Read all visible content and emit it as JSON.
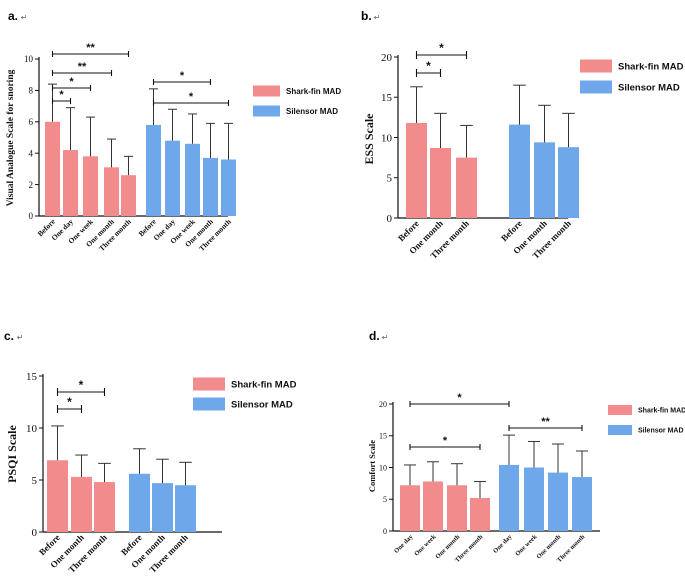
{
  "colors": {
    "shark": "#f28b8b",
    "silensor": "#6fa8ea",
    "axis": "#111111",
    "err": "#333333"
  },
  "series_names": [
    "Shark-fin MAD",
    "Silensor MAD"
  ],
  "edit_mark": "↵",
  "chart_data": [
    {
      "id": "a",
      "letter": "a.",
      "type": "bar",
      "ylabel": "Visual Analogue Scale for snoring",
      "ylim": [
        0,
        10
      ],
      "yticks": [
        0,
        2,
        4,
        6,
        8,
        10
      ],
      "series": [
        {
          "name": "Shark-fin MAD",
          "categories": [
            "Before",
            "One day",
            "One week",
            "One month",
            "Three month"
          ],
          "values": [
            6.0,
            4.2,
            3.8,
            3.1,
            2.6
          ],
          "errors": [
            2.4,
            2.7,
            2.5,
            1.8,
            1.2
          ]
        },
        {
          "name": "Silensor MAD",
          "categories": [
            "Before",
            "One day",
            "One week",
            "One month",
            "Three month"
          ],
          "values": [
            5.8,
            4.8,
            4.6,
            3.7,
            3.6
          ],
          "errors": [
            2.3,
            2.0,
            1.9,
            2.2,
            2.3
          ]
        }
      ],
      "significance": [
        {
          "from": [
            0,
            0
          ],
          "to": [
            0,
            1
          ],
          "label": "*"
        },
        {
          "from": [
            0,
            0
          ],
          "to": [
            0,
            2
          ],
          "label": "*"
        },
        {
          "from": [
            0,
            0
          ],
          "to": [
            0,
            3
          ],
          "label": "**"
        },
        {
          "from": [
            0,
            0
          ],
          "to": [
            0,
            4
          ],
          "label": "**"
        },
        {
          "from": [
            1,
            0
          ],
          "to": [
            1,
            3
          ],
          "label": "*"
        },
        {
          "from": [
            1,
            0
          ],
          "to": [
            1,
            4
          ],
          "label": "*"
        }
      ]
    },
    {
      "id": "b",
      "letter": "b.",
      "type": "bar",
      "ylabel": "ESS Scale",
      "ylim": [
        0,
        20
      ],
      "yticks": [
        0,
        5,
        10,
        15,
        20
      ],
      "series": [
        {
          "name": "Shark-fin MAD",
          "categories": [
            "Before",
            "One month",
            "Three month"
          ],
          "values": [
            11.8,
            8.7,
            7.5
          ],
          "errors": [
            4.5,
            4.3,
            4.0
          ]
        },
        {
          "name": "Silensor MAD",
          "categories": [
            "Before",
            "One month",
            "Three month"
          ],
          "values": [
            11.6,
            9.4,
            8.8
          ],
          "errors": [
            4.9,
            4.6,
            4.2
          ]
        }
      ],
      "significance": [
        {
          "from": [
            0,
            0
          ],
          "to": [
            0,
            1
          ],
          "label": "*"
        },
        {
          "from": [
            0,
            0
          ],
          "to": [
            0,
            2
          ],
          "label": "*"
        }
      ]
    },
    {
      "id": "c",
      "letter": "c.",
      "type": "bar",
      "ylabel": "PSQI Scale",
      "ylim": [
        0,
        15
      ],
      "yticks": [
        0,
        5,
        10,
        15
      ],
      "series": [
        {
          "name": "Shark-fin MAD",
          "categories": [
            "Before",
            "One month",
            "Three month"
          ],
          "values": [
            6.9,
            5.3,
            4.8
          ],
          "errors": [
            3.3,
            2.1,
            1.8
          ]
        },
        {
          "name": "Silensor MAD",
          "categories": [
            "Before",
            "One month",
            "Three month"
          ],
          "values": [
            5.6,
            4.7,
            4.5
          ],
          "errors": [
            2.4,
            2.3,
            2.2
          ]
        }
      ],
      "significance": [
        {
          "from": [
            0,
            0
          ],
          "to": [
            0,
            1
          ],
          "label": "*"
        },
        {
          "from": [
            0,
            0
          ],
          "to": [
            0,
            2
          ],
          "label": "*"
        }
      ]
    },
    {
      "id": "d",
      "letter": "d.",
      "type": "bar",
      "ylabel": "Comfort Scale",
      "ylim": [
        0,
        20
      ],
      "yticks": [
        0,
        5,
        10,
        15,
        20
      ],
      "series": [
        {
          "name": "Shark-fin MAD",
          "categories": [
            "One day",
            "One week",
            "One month",
            "Three month"
          ],
          "values": [
            7.2,
            7.8,
            7.2,
            5.2
          ],
          "errors": [
            3.2,
            3.1,
            3.4,
            2.6
          ]
        },
        {
          "name": "Silensor MAD",
          "categories": [
            "One day",
            "One week",
            "One month",
            "Three month"
          ],
          "values": [
            10.4,
            10.0,
            9.2,
            8.5
          ],
          "errors": [
            4.7,
            4.1,
            4.5,
            4.1
          ]
        }
      ],
      "significance": [
        {
          "from": [
            0,
            0
          ],
          "to": [
            0,
            3
          ],
          "label": "*"
        },
        {
          "from": [
            0,
            0
          ],
          "to": [
            1,
            0
          ],
          "label": "*"
        },
        {
          "from": [
            1,
            0
          ],
          "to": [
            1,
            3
          ],
          "label": "**"
        }
      ]
    }
  ]
}
